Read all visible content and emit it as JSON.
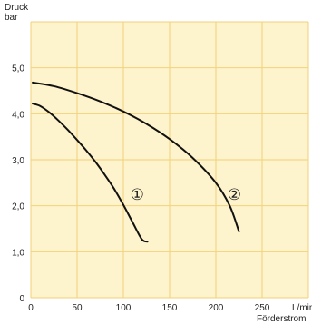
{
  "chart_data": {
    "type": "line",
    "y_title_line1": "Druck",
    "y_title_line2": "bar",
    "x_unit": "L/min",
    "x_title": "Förderstrom",
    "xlim": [
      0,
      300
    ],
    "ylim": [
      0,
      6
    ],
    "x_ticks": [
      0,
      50,
      100,
      150,
      200,
      250
    ],
    "x_tick_labels": [
      "0",
      "50",
      "100",
      "150",
      "200",
      "250"
    ],
    "y_ticks": [
      0,
      1,
      2,
      3,
      4,
      5
    ],
    "y_tick_labels": [
      "0",
      "1,0",
      "2,0",
      "3,0",
      "4,0",
      "5,0"
    ],
    "x_grid": [
      0,
      50,
      100,
      150,
      200,
      250,
      300
    ],
    "y_grid": [
      0,
      1,
      2,
      3,
      4,
      5,
      6
    ],
    "grid": true,
    "background_color": "#FDF3CC",
    "grid_color": "#F2D27A",
    "line_color": "#111111",
    "series": [
      {
        "name": "①",
        "x": [
          2,
          10,
          20,
          30,
          40,
          50,
          60,
          70,
          80,
          90,
          100,
          110,
          120,
          126
        ],
        "y": [
          4.22,
          4.17,
          4.03,
          3.85,
          3.65,
          3.43,
          3.2,
          2.95,
          2.67,
          2.37,
          2.02,
          1.64,
          1.27,
          1.22
        ],
        "label_at": [
          115,
          2.25
        ]
      },
      {
        "name": "②",
        "x": [
          2,
          25,
          50,
          75,
          100,
          125,
          150,
          175,
          200,
          215,
          225
        ],
        "y": [
          4.68,
          4.6,
          4.45,
          4.27,
          4.05,
          3.78,
          3.45,
          3.04,
          2.5,
          2.0,
          1.44
        ],
        "label_at": [
          220,
          2.25
        ]
      }
    ]
  }
}
